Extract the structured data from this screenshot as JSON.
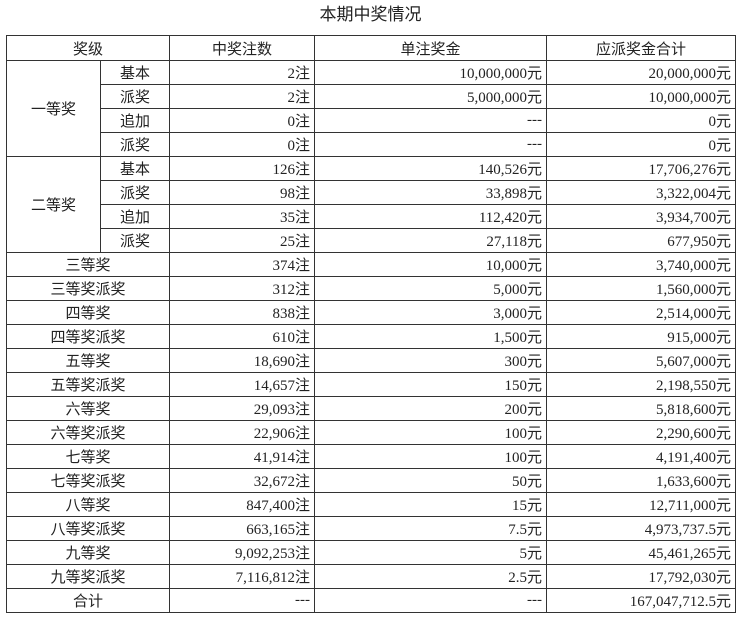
{
  "title": "本期中奖情况",
  "headers": [
    "奖级",
    "中奖注数",
    "单注奖金",
    "应派奖金合计"
  ],
  "groups": [
    {
      "name": "一等奖",
      "rows": [
        {
          "sub": "基本",
          "count": "2注",
          "prize": "10,000,000元",
          "total": "20,000,000元"
        },
        {
          "sub": "派奖",
          "count": "2注",
          "prize": "5,000,000元",
          "total": "10,000,000元"
        },
        {
          "sub": "追加",
          "count": "0注",
          "prize": "---",
          "total": "0元"
        },
        {
          "sub": "派奖",
          "count": "0注",
          "prize": "---",
          "total": "0元"
        }
      ]
    },
    {
      "name": "二等奖",
      "rows": [
        {
          "sub": "基本",
          "count": "126注",
          "prize": "140,526元",
          "total": "17,706,276元"
        },
        {
          "sub": "派奖",
          "count": "98注",
          "prize": "33,898元",
          "total": "3,322,004元"
        },
        {
          "sub": "追加",
          "count": "35注",
          "prize": "112,420元",
          "total": "3,934,700元"
        },
        {
          "sub": "派奖",
          "count": "25注",
          "prize": "27,118元",
          "total": "677,950元"
        }
      ]
    }
  ],
  "rows": [
    {
      "name": "三等奖",
      "count": "374注",
      "prize": "10,000元",
      "total": "3,740,000元"
    },
    {
      "name": "三等奖派奖",
      "count": "312注",
      "prize": "5,000元",
      "total": "1,560,000元"
    },
    {
      "name": "四等奖",
      "count": "838注",
      "prize": "3,000元",
      "total": "2,514,000元"
    },
    {
      "name": "四等奖派奖",
      "count": "610注",
      "prize": "1,500元",
      "total": "915,000元"
    },
    {
      "name": "五等奖",
      "count": "18,690注",
      "prize": "300元",
      "total": "5,607,000元"
    },
    {
      "name": "五等奖派奖",
      "count": "14,657注",
      "prize": "150元",
      "total": "2,198,550元"
    },
    {
      "name": "六等奖",
      "count": "29,093注",
      "prize": "200元",
      "total": "5,818,600元"
    },
    {
      "name": "六等奖派奖",
      "count": "22,906注",
      "prize": "100元",
      "total": "2,290,600元"
    },
    {
      "name": "七等奖",
      "count": "41,914注",
      "prize": "100元",
      "total": "4,191,400元"
    },
    {
      "name": "七等奖派奖",
      "count": "32,672注",
      "prize": "50元",
      "total": "1,633,600元"
    },
    {
      "name": "八等奖",
      "count": "847,400注",
      "prize": "15元",
      "total": "12,711,000元"
    },
    {
      "name": "八等奖派奖",
      "count": "663,165注",
      "prize": "7.5元",
      "total": "4,973,737.5元"
    },
    {
      "name": "九等奖",
      "count": "9,092,253注",
      "prize": "5元",
      "total": "45,461,265元"
    },
    {
      "name": "九等奖派奖",
      "count": "7,116,812注",
      "prize": "2.5元",
      "total": "17,792,030元"
    },
    {
      "name": "合计",
      "count": "---",
      "prize": "---",
      "total": "167,047,712.5元"
    }
  ]
}
